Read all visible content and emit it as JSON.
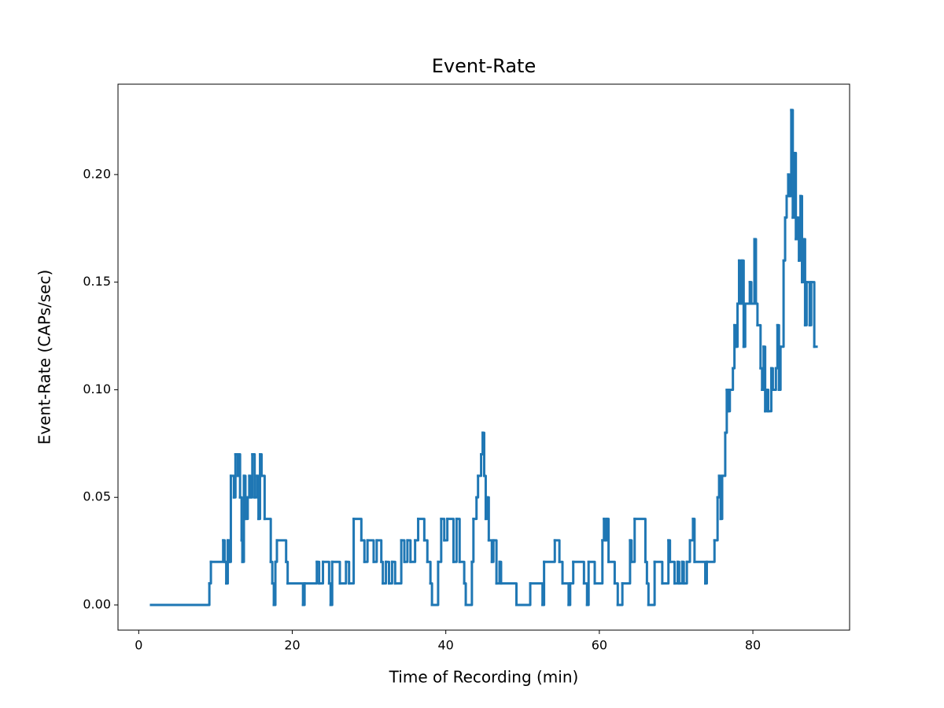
{
  "chart_data": {
    "type": "line",
    "drawstyle": "steps-post",
    "title": "Event-Rate",
    "x_label": "Time of Recording (min)",
    "y_label": "Event-Rate (CAPs/sec)",
    "xlim": [
      -2.7,
      92.6
    ],
    "ylim": [
      -0.0117,
      0.242
    ],
    "xticks": [
      0,
      20,
      40,
      60,
      80
    ],
    "yticks": [
      {
        "value": 0,
        "label": "0.00"
      },
      {
        "value": 0.05,
        "label": "0.05"
      },
      {
        "value": 0.1,
        "label": "0.10"
      },
      {
        "value": 0.15,
        "label": "0.15"
      },
      {
        "value": 0.2,
        "label": "0.20"
      }
    ],
    "series": [
      {
        "color": "#1f77b4",
        "x": [
          1.6,
          9.2,
          9.4,
          11.0,
          11.2,
          11.4,
          11.6,
          11.8,
          12.0,
          12.4,
          12.6,
          12.9,
          13.0,
          13.2,
          13.4,
          13.5,
          13.7,
          13.9,
          14.2,
          14.4,
          14.6,
          14.8,
          15.1,
          15.4,
          15.6,
          15.8,
          16.0,
          16.4,
          17.2,
          17.4,
          17.6,
          17.8,
          18.0,
          19.2,
          19.4,
          21.4,
          21.6,
          23.2,
          23.5,
          24.0,
          24.8,
          25.0,
          25.2,
          26.2,
          27.0,
          27.4,
          28.0,
          29.0,
          29.4,
          29.8,
          30.6,
          31.0,
          31.6,
          31.8,
          32.2,
          32.6,
          33.0,
          33.4,
          34.2,
          34.6,
          35.0,
          35.4,
          36.0,
          36.4,
          37.2,
          37.6,
          38.0,
          38.2,
          39.0,
          39.4,
          39.8,
          40.2,
          41.0,
          41.4,
          41.8,
          42.4,
          42.6,
          43.4,
          43.6,
          44.0,
          44.2,
          44.6,
          44.8,
          45.0,
          45.2,
          45.4,
          45.6,
          46.0,
          46.2,
          46.6,
          47.0,
          47.2,
          49.2,
          51.0,
          52.6,
          52.8,
          54.2,
          54.8,
          55.2,
          56.0,
          56.2,
          56.6,
          58.0,
          58.4,
          58.6,
          59.4,
          60.4,
          60.6,
          60.8,
          61.0,
          61.2,
          62.0,
          62.4,
          63.0,
          64.0,
          64.2,
          64.6,
          66.0,
          66.2,
          66.4,
          67.2,
          68.2,
          69.0,
          69.2,
          69.8,
          70.2,
          70.4,
          70.8,
          71.0,
          71.4,
          71.8,
          72.2,
          72.4,
          73.8,
          74.0,
          75.0,
          75.4,
          75.6,
          75.8,
          76.0,
          76.4,
          76.6,
          76.8,
          77.0,
          77.4,
          77.6,
          77.8,
          78.0,
          78.2,
          78.4,
          78.6,
          78.8,
          79.0,
          79.6,
          79.8,
          80.2,
          80.4,
          80.6,
          81.0,
          81.2,
          81.4,
          81.6,
          81.8,
          82.0,
          82.4,
          82.6,
          83.0,
          83.2,
          83.4,
          83.6,
          84.0,
          84.2,
          84.4,
          84.6,
          84.8,
          85.0,
          85.2,
          85.4,
          85.6,
          85.8,
          86.0,
          86.2,
          86.4,
          86.6,
          86.8,
          87.0,
          87.4,
          87.6,
          88.0,
          88.3
        ],
        "values": [
          0,
          0.01,
          0.02,
          0.03,
          0.02,
          0.01,
          0.03,
          0.02,
          0.06,
          0.05,
          0.07,
          0.06,
          0.07,
          0.05,
          0.03,
          0.02,
          0.06,
          0.04,
          0.05,
          0.06,
          0.05,
          0.07,
          0.05,
          0.06,
          0.04,
          0.07,
          0.06,
          0.04,
          0.02,
          0.01,
          0,
          0.02,
          0.03,
          0.02,
          0.01,
          0,
          0.01,
          0.02,
          0.01,
          0.02,
          0.01,
          0,
          0.02,
          0.01,
          0.02,
          0.01,
          0.04,
          0.03,
          0.02,
          0.03,
          0.02,
          0.03,
          0.02,
          0.01,
          0.02,
          0.01,
          0.02,
          0.01,
          0.03,
          0.02,
          0.03,
          0.02,
          0.03,
          0.04,
          0.03,
          0.02,
          0.01,
          0,
          0.02,
          0.04,
          0.03,
          0.04,
          0.02,
          0.04,
          0.02,
          0.01,
          0,
          0.02,
          0.04,
          0.05,
          0.06,
          0.07,
          0.08,
          0.06,
          0.04,
          0.05,
          0.03,
          0.02,
          0.03,
          0.01,
          0.02,
          0.01,
          0,
          0.01,
          0,
          0.02,
          0.03,
          0.02,
          0.01,
          0,
          0.01,
          0.02,
          0.01,
          0,
          0.02,
          0.01,
          0.03,
          0.04,
          0.03,
          0.04,
          0.02,
          0.01,
          0,
          0.01,
          0.03,
          0.02,
          0.04,
          0.02,
          0.01,
          0,
          0.02,
          0.01,
          0.03,
          0.02,
          0.01,
          0.02,
          0.01,
          0.02,
          0.01,
          0.02,
          0.03,
          0.04,
          0.02,
          0.01,
          0.02,
          0.03,
          0.05,
          0.06,
          0.04,
          0.06,
          0.08,
          0.1,
          0.09,
          0.1,
          0.11,
          0.13,
          0.12,
          0.14,
          0.16,
          0.14,
          0.16,
          0.12,
          0.14,
          0.15,
          0.14,
          0.17,
          0.14,
          0.13,
          0.11,
          0.1,
          0.12,
          0.09,
          0.1,
          0.09,
          0.11,
          0.1,
          0.11,
          0.13,
          0.1,
          0.12,
          0.16,
          0.18,
          0.19,
          0.2,
          0.19,
          0.23,
          0.18,
          0.21,
          0.17,
          0.18,
          0.16,
          0.19,
          0.15,
          0.17,
          0.13,
          0.15,
          0.13,
          0.15,
          0.12,
          0.12
        ]
      }
    ]
  }
}
